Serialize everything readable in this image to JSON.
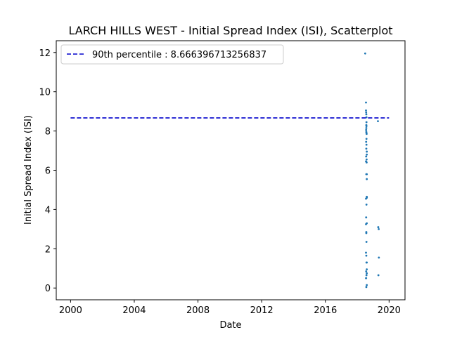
{
  "chart_data": {
    "type": "scatter",
    "title": "LARCH HILLS WEST - Initial Spread Index (ISI), Scatterplot",
    "xlabel": "Date",
    "ylabel": "Initial Spread Index (ISI)",
    "xlim": [
      1999.1,
      2001.0
    ],
    "xlim_note": "",
    "x_range": [
      1999.1,
      2021.0
    ],
    "y_range": [
      -0.6,
      12.6
    ],
    "x_ticks": [
      2000,
      2004,
      2008,
      2012,
      2016,
      2020
    ],
    "x_tick_labels": [
      "2000",
      "2004",
      "2008",
      "2012",
      "2016",
      "2020"
    ],
    "y_ticks": [
      0,
      2,
      4,
      6,
      8,
      10,
      12
    ],
    "y_tick_labels": [
      "0",
      "2",
      "4",
      "6",
      "8",
      "10",
      "12"
    ],
    "grid": false,
    "legend_position": "top-left",
    "series": [
      {
        "name": "ISI",
        "color": "#1f77b4",
        "x": [
          2018.5,
          2018.55,
          2018.55,
          2018.56,
          2018.57,
          2018.58,
          2018.58,
          2018.57,
          2018.58,
          2018.57,
          2018.56,
          2018.57,
          2018.58,
          2018.59,
          2018.58,
          2018.56,
          2018.58,
          2018.57,
          2018.6,
          2018.6,
          2018.56,
          2018.59,
          2018.55,
          2018.59,
          2018.6,
          2018.57,
          2018.6,
          2018.6,
          2018.6,
          2018.55,
          2018.58,
          2018.56,
          2018.6,
          2018.55,
          2018.57,
          2018.57,
          2018.58,
          2018.55,
          2018.57,
          2018.6,
          2018.58,
          2018.6,
          2018.56,
          2018.6,
          2018.58,
          2018.55,
          2018.56,
          2018.6,
          2018.57,
          2019.3,
          2019.32,
          2019.35,
          2019.36,
          2019.33
        ],
        "y": [
          11.95,
          9.45,
          9.05,
          8.95,
          8.85,
          8.7,
          8.45,
          8.3,
          8.25,
          8.15,
          8.05,
          7.95,
          7.9,
          7.85,
          7.6,
          7.45,
          7.3,
          7.1,
          6.95,
          6.8,
          6.7,
          6.55,
          6.45,
          6.4,
          5.8,
          5.8,
          5.55,
          4.65,
          4.6,
          4.55,
          4.25,
          3.6,
          3.3,
          3.25,
          2.85,
          2.8,
          2.35,
          1.8,
          1.65,
          1.3,
          1.3,
          0.95,
          0.85,
          0.75,
          0.65,
          0.5,
          0.5,
          0.15,
          0.05,
          8.5,
          3.1,
          3.0,
          1.55,
          0.65
        ]
      }
    ],
    "reference_line": {
      "name": "90th percentile : 8.666396713256837",
      "y": 8.666396713256837,
      "x_start": 2000,
      "x_end": 2020,
      "color": "#0000cc",
      "style": "dashed"
    }
  }
}
